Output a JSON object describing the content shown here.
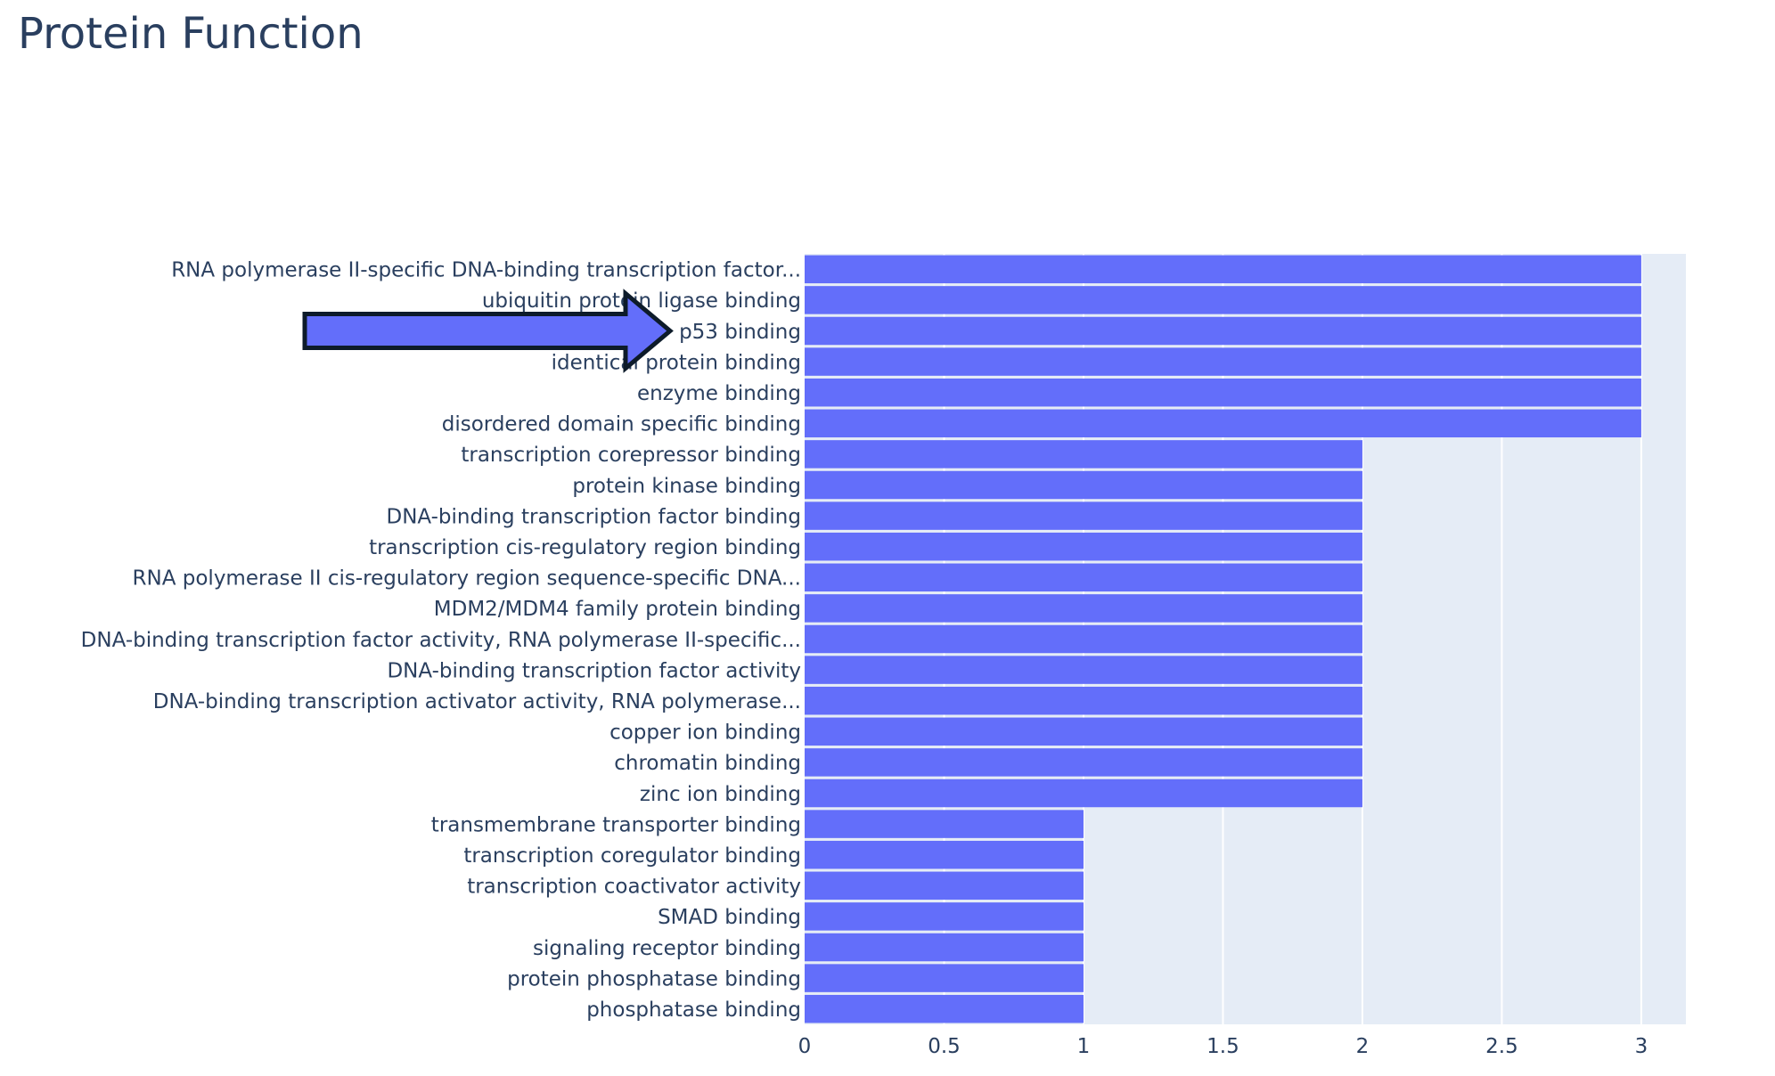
{
  "chart_data": {
    "type": "bar",
    "orientation": "horizontal",
    "title": "Protein Function",
    "xlabel": "",
    "ylabel": "",
    "xlim": [
      0,
      3.16
    ],
    "x_ticks": [
      "0",
      "0.5",
      "1",
      "1.5",
      "2",
      "2.5",
      "3"
    ],
    "x_tick_values": [
      0,
      0.5,
      1,
      1.5,
      2,
      2.5,
      3
    ],
    "grid": true,
    "bar_color": "#636efa",
    "plot_bg_color": "#e5ecf6",
    "text_color": "#2a3f5f",
    "categories": [
      "RNA polymerase II-specific DNA-binding transcription factor...",
      "ubiquitin protein ligase binding",
      "p53 binding",
      "identical protein binding",
      "enzyme binding",
      "disordered domain specific binding",
      "transcription corepressor binding",
      "protein kinase binding",
      "DNA-binding transcription factor binding",
      "transcription cis-regulatory region binding",
      "RNA polymerase II cis-regulatory region sequence-specific DNA...",
      "MDM2/MDM4 family protein binding",
      "DNA-binding transcription factor activity, RNA polymerase II-specific...",
      "DNA-binding transcription factor activity",
      "DNA-binding transcription activator activity, RNA polymerase...",
      "copper ion binding",
      "chromatin binding",
      "zinc ion binding",
      "transmembrane transporter binding",
      "transcription coregulator binding",
      "transcription coactivator activity",
      "SMAD binding",
      "signaling receptor binding",
      "protein phosphatase binding",
      "phosphatase binding"
    ],
    "values": [
      3,
      3,
      3,
      3,
      3,
      3,
      2,
      2,
      2,
      2,
      2,
      2,
      2,
      2,
      2,
      2,
      2,
      2,
      1,
      1,
      1,
      1,
      1,
      1,
      1
    ],
    "annotation": {
      "shape": "arrow",
      "points_to": "p53 binding",
      "fill_color": "#636efa",
      "stroke_color": "#0d1b2a"
    }
  }
}
